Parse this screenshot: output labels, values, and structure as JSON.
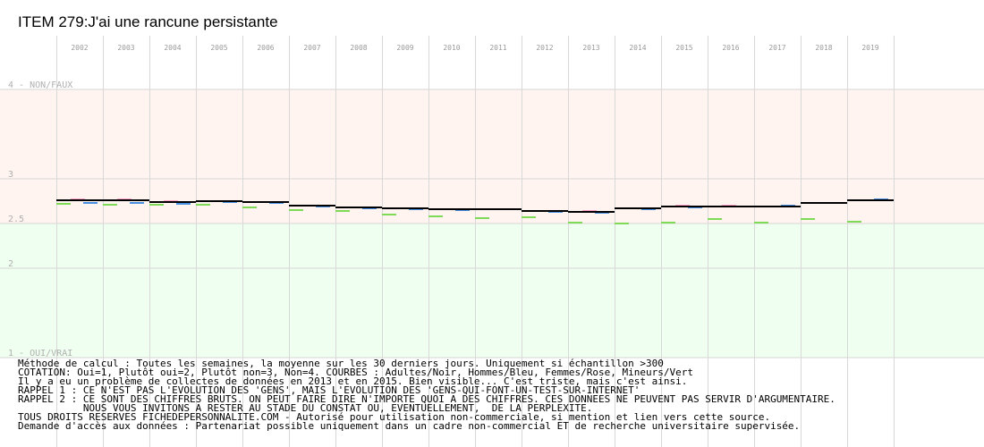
{
  "chart_data": {
    "type": "line",
    "title": "ITEM 279:J'ai une rancune persistante",
    "categories": [
      "2002",
      "2003",
      "2004",
      "2005",
      "2006",
      "2007",
      "2008",
      "2009",
      "2010",
      "2011",
      "2012",
      "2013",
      "2014",
      "2015",
      "2016",
      "2017",
      "2018",
      "2019"
    ],
    "y_tick_labels": [
      {
        "value": 4,
        "label": "4 - NON/FAUX"
      },
      {
        "value": 3,
        "label": "3"
      },
      {
        "value": 2.5,
        "label": "2.5"
      },
      {
        "value": 2,
        "label": "2"
      },
      {
        "value": 1,
        "label": "1 - OUI/VRAI"
      }
    ],
    "ylim": [
      1,
      4
    ],
    "bands": [
      {
        "from": 2.5,
        "to": 4,
        "color": "#fff4ef"
      },
      {
        "from": 1,
        "to": 2.5,
        "color": "#effff0"
      }
    ],
    "grid": true,
    "series": [
      {
        "name": "Adultes",
        "color": "#000000",
        "values": [
          2.76,
          2.76,
          2.74,
          2.75,
          2.74,
          2.7,
          2.68,
          2.67,
          2.66,
          2.66,
          2.64,
          2.63,
          2.67,
          2.69,
          2.69,
          2.69,
          2.73,
          2.76
        ]
      },
      {
        "name": "Hommes",
        "color": "#4a90e2",
        "values": [
          2.73,
          2.73,
          2.72,
          2.74,
          2.73,
          2.69,
          2.67,
          2.66,
          2.65,
          2.66,
          2.63,
          2.62,
          2.66,
          2.68,
          2.69,
          2.7,
          2.73,
          2.77
        ]
      },
      {
        "name": "Femmes",
        "color": "#ff9fc8",
        "values": [
          2.77,
          2.77,
          2.75,
          2.75,
          2.74,
          2.7,
          2.68,
          2.67,
          2.66,
          2.66,
          2.64,
          2.64,
          2.67,
          2.7,
          2.7,
          2.69,
          2.73,
          2.76
        ]
      },
      {
        "name": "Mineurs",
        "color": "#7ed957",
        "values": [
          2.72,
          2.71,
          2.71,
          2.71,
          2.68,
          2.65,
          2.64,
          2.6,
          2.58,
          2.56,
          2.57,
          2.51,
          2.5,
          2.51,
          2.55,
          2.51,
          2.55,
          2.52
        ]
      }
    ]
  },
  "notes": [
    "Méthode de calcul : Toutes les semaines, la moyenne sur les 30 derniers jours. Uniquement si échantillon >300",
    "COTATION: Oui=1, Plutôt oui=2, Plutôt non=3, Non=4. COURBES : Adultes/Noir, Hommes/Bleu, Femmes/Rose, Mineurs/Vert",
    "Il y a eu un problème de collectes de données en 2013 et en 2015. Bien visible... C'est triste, mais c'est ainsi.",
    "RAPPEL 1 : CE N'EST PAS L'EVOLUTION DES 'GENS', MAIS L'EVOLUTION DES 'GENS-QUI-FONT-UN-TEST-SUR-INTERNET'",
    "RAPPEL 2 : CE SONT DES CHIFFRES BRUTS. ON PEUT FAIRE DIRE N'IMPORTE QUOI A DES CHIFFRES. CES DONNEES NE PEUVENT PAS SERVIR D'ARGUMENTAIRE.",
    "           NOUS VOUS INVITONS A RESTER AU STADE DU CONSTAT OU, EVENTUELLEMENT,  DE LA PERPLEXITE.",
    "TOUS DROITS RESERVES FICHEDEPERSONNALITE.COM - Autorisé pour utilisation non-commerciale, si mention et lien vers cette source.",
    "Demande d'accès aux données : Partenariat possible uniquement dans un cadre non-commercial ET de recherche universitaire supervisée."
  ]
}
